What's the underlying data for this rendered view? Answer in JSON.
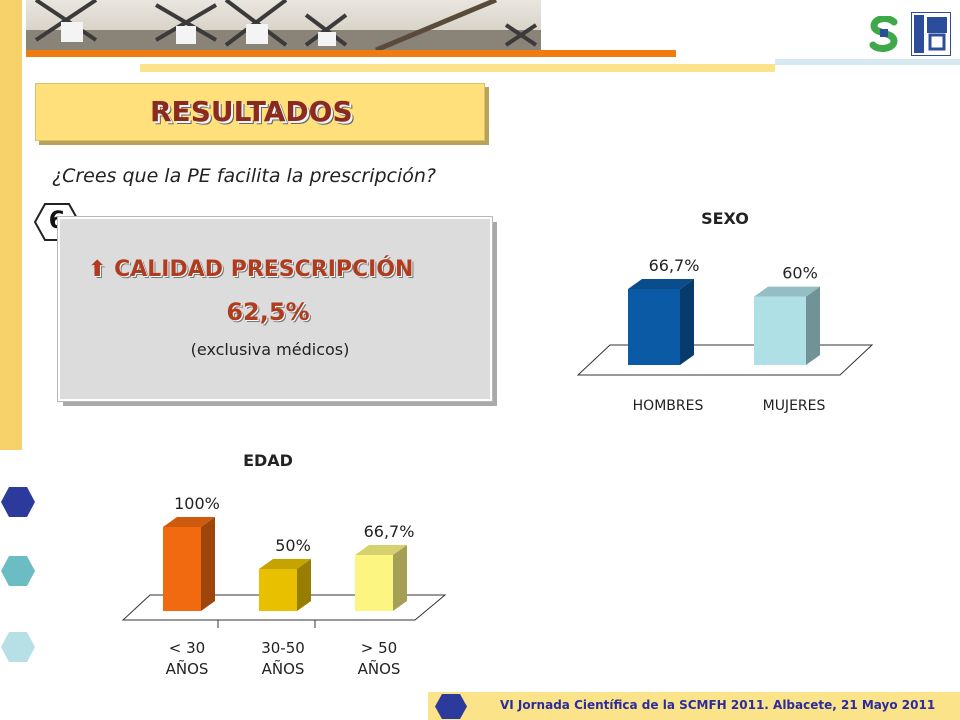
{
  "title": "RESULTADOS",
  "question": "¿Crees que la PE  facilita la prescripción?",
  "badge": "6",
  "quality": {
    "arrow_icon": "up-arrow-icon",
    "heading": "CALIDAD PRESCRIPCIÓN",
    "value": "62,5%",
    "note": "(exclusiva médicos)"
  },
  "footer": "VI Jornada Científica de la SCMFH 2011. Albacete, 21 Mayo 2011",
  "colors": {
    "accent_yellow": "#ffe07a",
    "orange": "#f07c11",
    "title_red": "#8b2a1e",
    "hombres": "#0a5aa6",
    "mujeres": "#aee0e6",
    "edad_1": "#f26a10",
    "edad_2": "#e8c000",
    "edad_3": "#fdf582"
  },
  "chart_data": [
    {
      "type": "bar",
      "title": "SEXO",
      "categories": [
        "HOMBRES",
        "MUJERES"
      ],
      "values": [
        66.7,
        60
      ],
      "data_labels": [
        "66,7%",
        "60%"
      ],
      "ylim": [
        0,
        100
      ]
    },
    {
      "type": "bar",
      "title": "EDAD",
      "categories": [
        "< 30\nAÑOS",
        "30-50\nAÑOS",
        "> 50\nAÑOS"
      ],
      "category_lines": [
        [
          "< 30",
          "AÑOS"
        ],
        [
          "30-50",
          "AÑOS"
        ],
        [
          "> 50",
          "AÑOS"
        ]
      ],
      "values": [
        100,
        50,
        66.7
      ],
      "data_labels": [
        "100%",
        "50%",
        "66,7%"
      ],
      "ylim": [
        0,
        100
      ]
    }
  ]
}
